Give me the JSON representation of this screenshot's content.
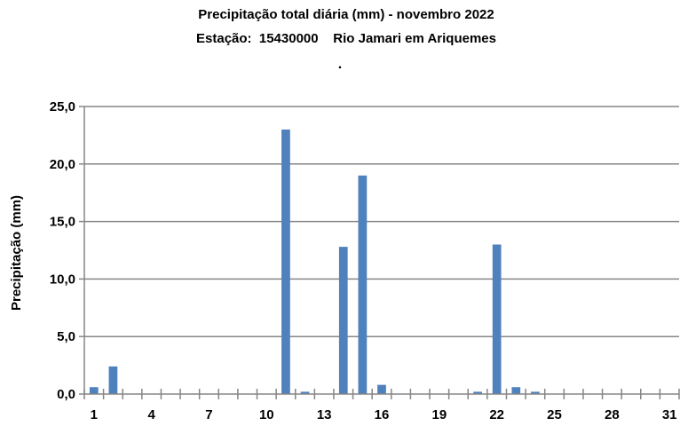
{
  "chart_data": {
    "type": "bar",
    "title_line1": "Precipitação total diária (mm) - novembro 2022",
    "title_line2": "Estação:  15430000    Rio Jamari em Ariquemes",
    "title_line3": ".",
    "xlabel": "",
    "ylabel": "Precipitação (mm)",
    "ylim": [
      0,
      25
    ],
    "y_ticks": [
      "0,0",
      "5,0",
      "10,0",
      "15,0",
      "20,0",
      "25,0"
    ],
    "x_tick_labels": [
      "1",
      "4",
      "7",
      "10",
      "13",
      "16",
      "19",
      "22",
      "25",
      "28",
      "31"
    ],
    "categories": [
      "1",
      "2",
      "3",
      "4",
      "5",
      "6",
      "7",
      "8",
      "9",
      "10",
      "11",
      "12",
      "13",
      "14",
      "15",
      "16",
      "17",
      "18",
      "19",
      "20",
      "21",
      "22",
      "23",
      "24",
      "25",
      "26",
      "27",
      "28",
      "29",
      "30",
      "31"
    ],
    "values": [
      0.6,
      2.4,
      0,
      0,
      0,
      0,
      0,
      0,
      0,
      0,
      23.0,
      0.2,
      0,
      12.8,
      19.0,
      0.8,
      0,
      0,
      0,
      0,
      0.2,
      13.0,
      0.6,
      0.2,
      0,
      0,
      0,
      0,
      0,
      0,
      0
    ],
    "bar_color": "#4F81BD",
    "grid": true
  }
}
